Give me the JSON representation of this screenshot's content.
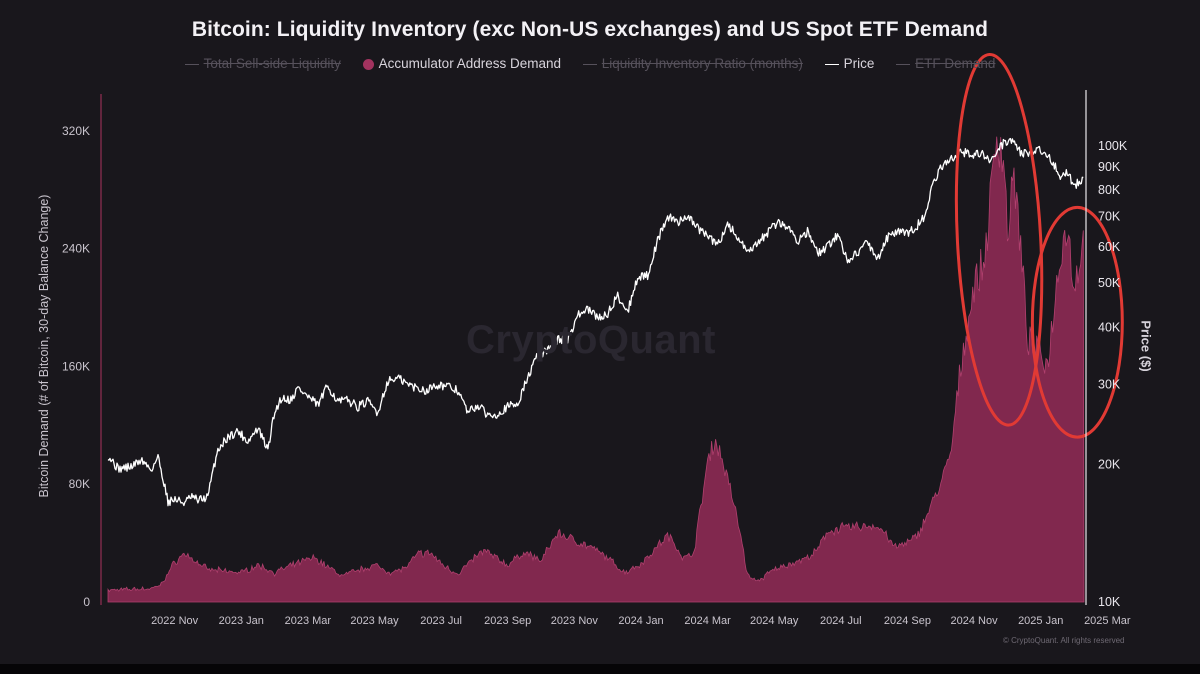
{
  "chart_data": {
    "type": "area",
    "title": "Bitcoin: Liquidity Inventory (exc Non-US exchanges) and US Spot ETF Demand",
    "ylabel": "Bitcoin Demand (# of Bitcoin, 30-day Balance Change)",
    "y2label": "Price ($)",
    "ylim": [
      0,
      345000
    ],
    "y2lim": [
      10000,
      130000
    ],
    "y2scale": "log",
    "legend": [
      {
        "name": "Total Sell-side Liquidity",
        "enabled": false
      },
      {
        "name": "Accumulator Address Demand",
        "enabled": true,
        "color": "#a2335f"
      },
      {
        "name": "Liquidity Inventory Ratio (months)",
        "enabled": false
      },
      {
        "name": "Price",
        "enabled": true,
        "color": "#ffffff"
      },
      {
        "name": "ETF Demand",
        "enabled": false
      }
    ],
    "x_tick_labels": [
      "2022 Nov",
      "2023 Jan",
      "2023 Mar",
      "2023 May",
      "2023 Jul",
      "2023 Sep",
      "2023 Nov",
      "2024 Jan",
      "2024 Mar",
      "2024 May",
      "2024 Jul",
      "2024 Sep",
      "2024 Nov",
      "2025 Jan",
      "2025 Mar"
    ],
    "y_tick_labels": [
      "0",
      "80K",
      "160K",
      "240K",
      "320K"
    ],
    "y_tick_values": [
      0,
      80000,
      160000,
      240000,
      320000
    ],
    "y2_tick_labels": [
      "10K",
      "20K",
      "30K",
      "40K",
      "50K",
      "60K",
      "70K",
      "80K",
      "90K",
      "100K"
    ],
    "y2_tick_values": [
      10000,
      20000,
      30000,
      40000,
      50000,
      60000,
      70000,
      80000,
      90000,
      100000
    ],
    "x_months_range": [
      0,
      29.3
    ],
    "series": [
      {
        "name": "Accumulator Address Demand",
        "x": [
          0,
          1.0,
          1.3,
          1.6,
          2.0,
          2.3,
          2.6,
          3.0,
          4.0,
          4.5,
          5.0,
          6.0,
          6.2,
          6.6,
          7.0,
          8.0,
          8.5,
          9.0,
          9.3,
          9.7,
          10.0,
          10.5,
          11.0,
          11.3,
          12.0,
          12.5,
          13.0,
          13.5,
          14.0,
          14.5,
          15.0,
          15.5,
          16.0,
          16.5,
          16.8,
          17.0,
          17.3,
          17.6,
          17.8,
          18.0,
          18.2,
          18.4,
          18.7,
          19.0,
          19.2,
          19.5,
          20.0,
          21.0,
          21.3,
          21.6,
          22.0,
          23.0,
          23.3,
          23.6,
          24.0,
          24.3,
          24.7,
          25.0,
          25.3,
          25.6,
          26.0,
          26.3,
          26.7,
          26.9,
          27.0,
          27.2,
          27.4,
          27.6,
          27.8,
          28.0,
          28.2,
          28.4,
          28.6,
          28.8,
          29.0,
          29.3
        ],
        "values": [
          8000,
          9000,
          9000,
          12000,
          27000,
          33000,
          28000,
          22000,
          20000,
          25000,
          20000,
          29000,
          30000,
          24000,
          18000,
          25000,
          20000,
          24000,
          33000,
          33000,
          26000,
          19000,
          30000,
          35000,
          25000,
          34000,
          28000,
          47000,
          42000,
          37000,
          30000,
          20000,
          26000,
          38000,
          45000,
          40000,
          29000,
          35000,
          65000,
          95000,
          110000,
          100000,
          75000,
          45000,
          18000,
          14000,
          22000,
          30000,
          35000,
          48000,
          50000,
          52000,
          48000,
          37000,
          40000,
          45000,
          65000,
          80000,
          100000,
          160000,
          215000,
          230000,
          320000,
          300000,
          250000,
          290000,
          240000,
          180000,
          170000,
          170000,
          160000,
          200000,
          240000,
          255000,
          215000,
          245000
        ]
      },
      {
        "name": "Price",
        "x": [
          0,
          0.3,
          0.7,
          1.0,
          1.3,
          1.5,
          1.8,
          2.0,
          2.3,
          2.5,
          2.7,
          3.0,
          3.3,
          3.6,
          3.9,
          4.2,
          4.5,
          4.8,
          5.0,
          5.2,
          5.5,
          5.7,
          6.0,
          6.3,
          6.6,
          6.9,
          7.2,
          7.5,
          7.8,
          8.1,
          8.4,
          8.7,
          9.0,
          9.3,
          9.6,
          9.8,
          10.1,
          10.5,
          10.8,
          11.1,
          11.4,
          11.7,
          12.0,
          12.3,
          12.6,
          12.9,
          13.2,
          13.5,
          13.8,
          14.1,
          14.4,
          14.7,
          15.0,
          15.3,
          15.6,
          15.9,
          16.2,
          16.5,
          16.8,
          17.1,
          17.4,
          17.7,
          18.0,
          18.3,
          18.6,
          18.9,
          19.2,
          19.5,
          19.8,
          20.1,
          20.4,
          20.7,
          21.0,
          21.3,
          21.6,
          21.9,
          22.2,
          22.5,
          22.8,
          23.1,
          23.4,
          23.7,
          24.0,
          24.3,
          24.5,
          24.7,
          25.0,
          25.3,
          25.6,
          25.9,
          26.2,
          26.5,
          26.8,
          27.1,
          27.4,
          27.7,
          28.0,
          28.3,
          28.6,
          28.8,
          29.0,
          29.3
        ],
        "values": [
          21000,
          19600,
          19800,
          20500,
          19500,
          20800,
          16600,
          16800,
          16500,
          17000,
          16700,
          17000,
          21600,
          23000,
          23700,
          22500,
          24000,
          21500,
          26000,
          28000,
          27800,
          29500,
          28200,
          27000,
          29800,
          27500,
          27700,
          26800,
          27500,
          26000,
          30500,
          31000,
          30000,
          29400,
          29100,
          30000,
          29800,
          29100,
          26000,
          27000,
          25700,
          25900,
          26800,
          27200,
          31000,
          34800,
          35600,
          37700,
          37500,
          42500,
          43800,
          42000,
          42800,
          47000,
          43200,
          51500,
          52000,
          62000,
          70000,
          68000,
          70500,
          66000,
          63500,
          60500,
          67500,
          63000,
          58000,
          61000,
          64500,
          68000,
          66500,
          62000,
          65000,
          58000,
          60000,
          64000,
          56000,
          58500,
          61500,
          56500,
          63000,
          65000,
          64000,
          67000,
          70000,
          79000,
          90000,
          93000,
          98000,
          95000,
          97000,
          92000,
          100000,
          104000,
          97000,
          96000,
          98000,
          94000,
          85000,
          88000,
          82000,
          84000
        ]
      }
    ]
  },
  "annotations": [
    {
      "type": "ellipse",
      "color": "#e13a34",
      "label": "",
      "x_months_center": 26.75,
      "x_months_halfwidth": 1.25,
      "y_center": 246000,
      "y_halfheight": 126000
    },
    {
      "type": "ellipse",
      "color": "#e13a34",
      "label": "",
      "x_months_center": 29.1,
      "x_months_halfwidth": 1.35,
      "y_center": 190000,
      "y_halfheight": 78000
    }
  ],
  "watermark": "CryptoQuant",
  "copyright": "© CryptoQuant. All rights reserved"
}
